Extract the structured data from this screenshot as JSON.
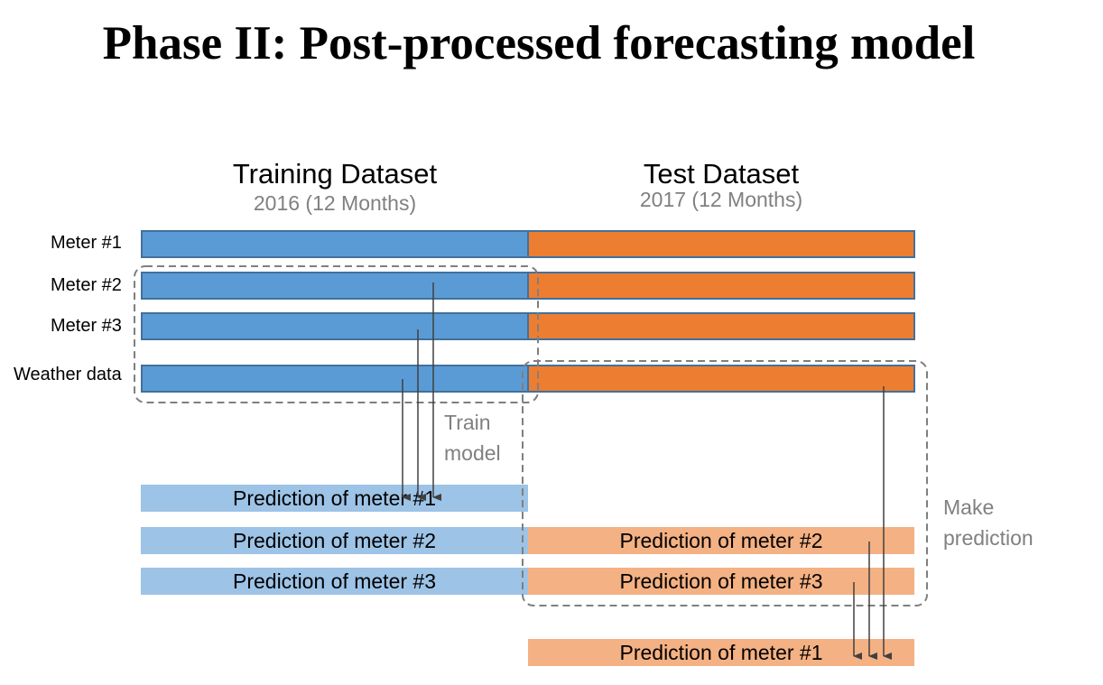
{
  "title": "Phase II: Post-processed forecasting model",
  "training": {
    "title": "Training Dataset",
    "subtitle": "2016 (12 Months)"
  },
  "test": {
    "title": "Test Dataset",
    "subtitle": "2017 (12 Months)"
  },
  "rows": {
    "meter1": "Meter #1",
    "meter2": "Meter #2",
    "meter3": "Meter #3",
    "weather": "Weather data"
  },
  "predictions": {
    "train_meter1": "Prediction of meter #1",
    "train_meter2": "Prediction of meter #2",
    "train_meter3": "Prediction of meter #3",
    "test_meter2": "Prediction of meter #2",
    "test_meter3": "Prediction of meter #3",
    "test_meter1": "Prediction of meter #1"
  },
  "notes": {
    "train_model": "Train\nmodel",
    "make_prediction": "Make\nprediction"
  },
  "colors": {
    "training_bar": "#5b9bd5",
    "test_bar": "#ed7d31",
    "training_prediction": "#9dc3e6",
    "test_prediction": "#f4b183",
    "note_text": "#808080"
  }
}
